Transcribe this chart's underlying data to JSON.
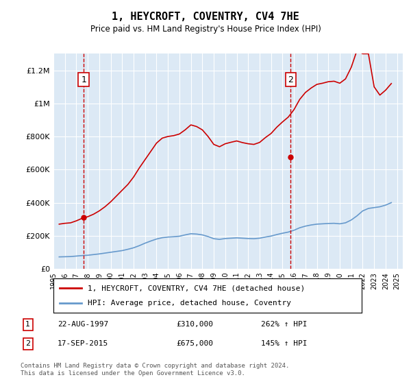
{
  "title": "1, HEYCROFT, COVENTRY, CV4 7HE",
  "subtitle": "Price paid vs. HM Land Registry's House Price Index (HPI)",
  "background_color": "#dce9f5",
  "plot_bg_color": "#dce9f5",
  "ylim": [
    0,
    1300000
  ],
  "yticks": [
    0,
    200000,
    400000,
    600000,
    800000,
    1000000,
    1200000
  ],
  "ytick_labels": [
    "£0",
    "£200K",
    "£400K",
    "£600K",
    "£800K",
    "£1M",
    "£1.2M"
  ],
  "xlim_start": 1995.5,
  "xlim_end": 2025.5,
  "xticks": [
    1995,
    1996,
    1997,
    1998,
    1999,
    2000,
    2001,
    2002,
    2003,
    2004,
    2005,
    2006,
    2007,
    2008,
    2009,
    2010,
    2011,
    2012,
    2013,
    2014,
    2015,
    2016,
    2017,
    2018,
    2019,
    2020,
    2021,
    2022,
    2023,
    2024,
    2025
  ],
  "sale1_x": 1997.64,
  "sale1_y": 310000,
  "sale1_label": "1",
  "sale1_date": "22-AUG-1997",
  "sale1_price": "£310,000",
  "sale1_hpi": "262% ↑ HPI",
  "sale2_x": 2015.71,
  "sale2_y": 675000,
  "sale2_label": "2",
  "sale2_date": "17-SEP-2015",
  "sale2_price": "£675,000",
  "sale2_hpi": "145% ↑ HPI",
  "line_color_property": "#cc0000",
  "line_color_hpi": "#6699cc",
  "legend_label_property": "1, HEYCROFT, COVENTRY, CV4 7HE (detached house)",
  "legend_label_hpi": "HPI: Average price, detached house, Coventry",
  "footer_text": "Contains HM Land Registry data © Crown copyright and database right 2024.\nThis data is licensed under the Open Government Licence v3.0.",
  "hpi_data_x": [
    1995.5,
    1996.0,
    1996.5,
    1997.0,
    1997.5,
    1998.0,
    1998.5,
    1999.0,
    1999.5,
    2000.0,
    2000.5,
    2001.0,
    2001.5,
    2002.0,
    2002.5,
    2003.0,
    2003.5,
    2004.0,
    2004.5,
    2005.0,
    2005.5,
    2006.0,
    2006.5,
    2007.0,
    2007.5,
    2008.0,
    2008.5,
    2009.0,
    2009.5,
    2010.0,
    2010.5,
    2011.0,
    2011.5,
    2012.0,
    2012.5,
    2013.0,
    2013.5,
    2014.0,
    2014.5,
    2015.0,
    2015.5,
    2016.0,
    2016.5,
    2017.0,
    2017.5,
    2018.0,
    2018.5,
    2019.0,
    2019.5,
    2020.0,
    2020.5,
    2021.0,
    2021.5,
    2022.0,
    2022.5,
    2023.0,
    2023.5,
    2024.0,
    2024.5
  ],
  "hpi_data_y": [
    72000,
    73000,
    74000,
    77000,
    80000,
    82000,
    86000,
    90000,
    95000,
    100000,
    105000,
    110000,
    118000,
    127000,
    140000,
    155000,
    168000,
    180000,
    188000,
    192000,
    194000,
    197000,
    205000,
    212000,
    210000,
    205000,
    195000,
    182000,
    178000,
    183000,
    185000,
    187000,
    185000,
    183000,
    182000,
    185000,
    192000,
    198000,
    207000,
    215000,
    222000,
    233000,
    248000,
    258000,
    265000,
    270000,
    272000,
    274000,
    275000,
    272000,
    278000,
    295000,
    320000,
    350000,
    365000,
    370000,
    375000,
    385000,
    400000
  ],
  "prop_data_x": [
    1995.5,
    1996.0,
    1996.5,
    1997.0,
    1997.5,
    1998.0,
    1998.5,
    1999.0,
    1999.5,
    2000.0,
    2000.5,
    2001.0,
    2001.5,
    2002.0,
    2002.5,
    2003.0,
    2003.5,
    2004.0,
    2004.5,
    2005.0,
    2005.5,
    2006.0,
    2006.5,
    2007.0,
    2007.5,
    2008.0,
    2008.5,
    2009.0,
    2009.5,
    2010.0,
    2010.5,
    2011.0,
    2011.5,
    2012.0,
    2012.5,
    2013.0,
    2013.5,
    2014.0,
    2014.5,
    2015.0,
    2015.5,
    2016.0,
    2016.5,
    2017.0,
    2017.5,
    2018.0,
    2018.5,
    2019.0,
    2019.5,
    2020.0,
    2020.5,
    2021.0,
    2021.5,
    2022.0,
    2022.5,
    2023.0,
    2023.5,
    2024.0,
    2024.5
  ],
  "prop_data_y": [
    270000,
    275000,
    278000,
    290000,
    305000,
    315000,
    330000,
    350000,
    375000,
    405000,
    440000,
    475000,
    510000,
    555000,
    610000,
    660000,
    710000,
    760000,
    790000,
    800000,
    805000,
    815000,
    840000,
    870000,
    860000,
    840000,
    800000,
    752000,
    738000,
    756000,
    765000,
    773000,
    763000,
    756000,
    752000,
    764000,
    793000,
    818000,
    856000,
    888000,
    917000,
    962000,
    1024000,
    1066000,
    1093000,
    1115000,
    1122000,
    1131000,
    1134000,
    1122000,
    1148000,
    1218000,
    1320000,
    1300000,
    1300000,
    1100000,
    1050000,
    1080000,
    1120000
  ]
}
